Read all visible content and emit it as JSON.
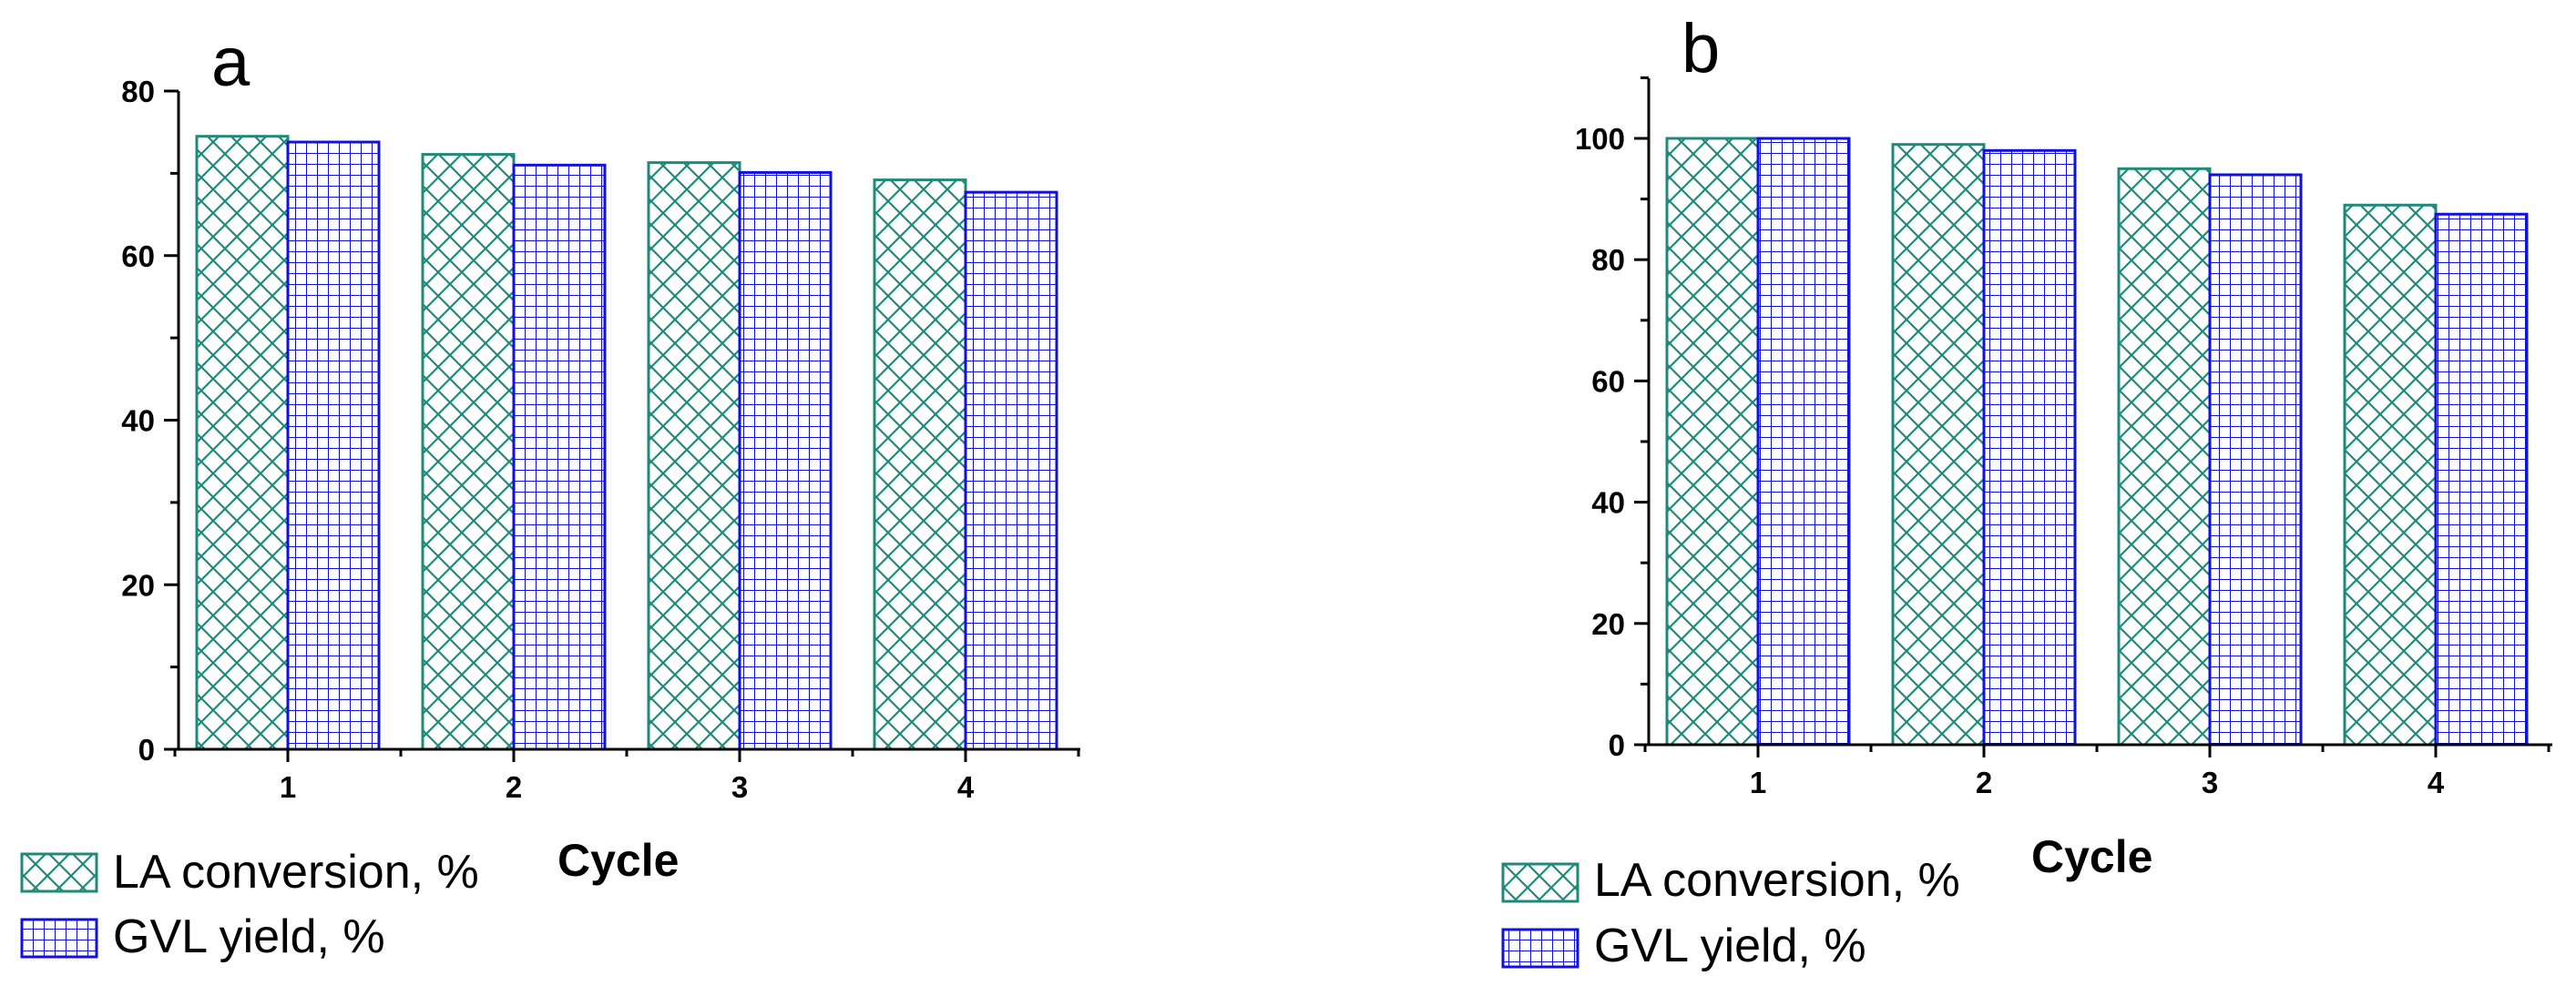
{
  "figure": {
    "series_styles": [
      {
        "name": "LA conversion, %",
        "color": "#1f8a7a",
        "pattern": "crosshatch"
      },
      {
        "name": "GVL yield, %",
        "color": "#1010e0",
        "pattern": "grid"
      }
    ]
  },
  "chart_data": [
    {
      "panel": "a",
      "type": "bar",
      "categories": [
        "1",
        "2",
        "3",
        "4"
      ],
      "series": [
        {
          "name": "LA conversion, %",
          "values": [
            74.5,
            72.3,
            71.3,
            69.2
          ]
        },
        {
          "name": "GVL yield, %",
          "values": [
            73.8,
            71.0,
            70.1,
            67.7
          ]
        }
      ],
      "xlabel": "Cycle",
      "ylabel": "",
      "ylim": [
        0,
        80
      ],
      "yticks": [
        0,
        20,
        40,
        60,
        80
      ],
      "legend": [
        "LA conversion, %",
        "GVL yield, %"
      ],
      "legend_position": "bottom-left"
    },
    {
      "panel": "b",
      "type": "bar",
      "categories": [
        "1",
        "2",
        "3",
        "4"
      ],
      "series": [
        {
          "name": "LA conversion, %",
          "values": [
            100,
            99,
            95,
            89
          ]
        },
        {
          "name": "GVL yield, %",
          "values": [
            100,
            98,
            94,
            87.5
          ]
        }
      ],
      "xlabel": "Cycle",
      "ylabel": "",
      "ylim": [
        0,
        110
      ],
      "yticks": [
        0,
        20,
        40,
        60,
        80,
        100
      ],
      "legend": [
        "LA conversion, %",
        "GVL yield, %"
      ],
      "legend_position": "bottom-left"
    }
  ]
}
